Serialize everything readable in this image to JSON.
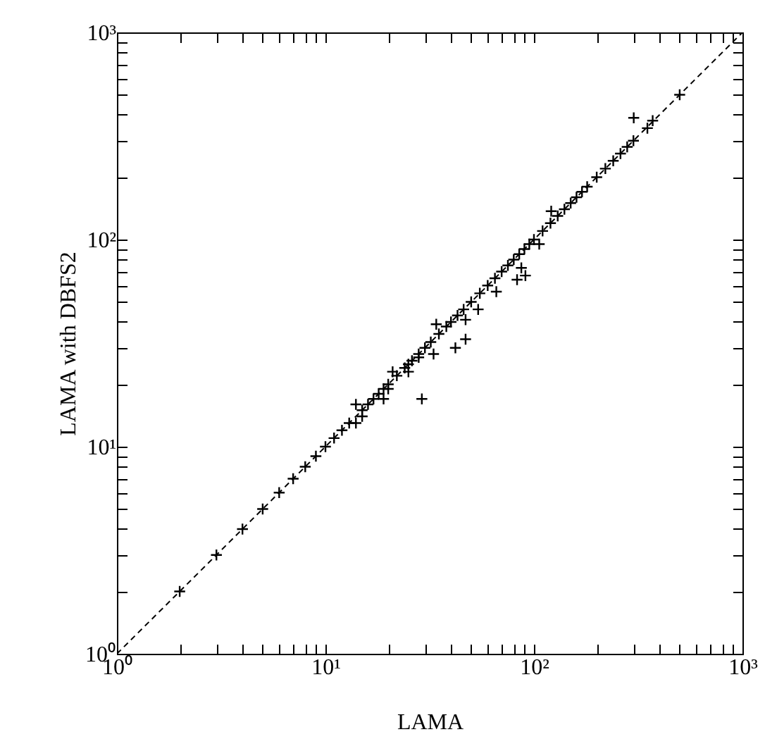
{
  "chart_data": {
    "type": "scatter",
    "xlabel": "LAMA",
    "ylabel": "LAMA with DBFS2",
    "log": "xy",
    "marker": "cross",
    "grid": false,
    "xlim": [
      1,
      1000
    ],
    "ylim": [
      1,
      1000
    ],
    "xticks": [
      {
        "value": 1,
        "label": "10⁰"
      },
      {
        "value": 2,
        "label": null
      },
      {
        "value": 3,
        "label": null
      },
      {
        "value": 4,
        "label": null
      },
      {
        "value": 5,
        "label": null
      },
      {
        "value": 6,
        "label": null
      },
      {
        "value": 7,
        "label": null
      },
      {
        "value": 8,
        "label": null
      },
      {
        "value": 9,
        "label": null
      },
      {
        "value": 10,
        "label": "10¹"
      },
      {
        "value": 20,
        "label": null
      },
      {
        "value": 30,
        "label": null
      },
      {
        "value": 40,
        "label": null
      },
      {
        "value": 50,
        "label": null
      },
      {
        "value": 60,
        "label": null
      },
      {
        "value": 70,
        "label": null
      },
      {
        "value": 80,
        "label": null
      },
      {
        "value": 90,
        "label": null
      },
      {
        "value": 100,
        "label": "10²"
      },
      {
        "value": 200,
        "label": null
      },
      {
        "value": 300,
        "label": null
      },
      {
        "value": 400,
        "label": null
      },
      {
        "value": 500,
        "label": null
      },
      {
        "value": 600,
        "label": null
      },
      {
        "value": 700,
        "label": null
      },
      {
        "value": 800,
        "label": null
      },
      {
        "value": 900,
        "label": null
      },
      {
        "value": 1000,
        "label": "10³"
      }
    ],
    "yticks": [
      {
        "value": 1,
        "label": "10⁰"
      },
      {
        "value": 2,
        "label": null
      },
      {
        "value": 3,
        "label": null
      },
      {
        "value": 4,
        "label": null
      },
      {
        "value": 5,
        "label": null
      },
      {
        "value": 6,
        "label": null
      },
      {
        "value": 7,
        "label": null
      },
      {
        "value": 8,
        "label": null
      },
      {
        "value": 9,
        "label": null
      },
      {
        "value": 10,
        "label": "10¹"
      },
      {
        "value": 20,
        "label": null
      },
      {
        "value": 30,
        "label": null
      },
      {
        "value": 40,
        "label": null
      },
      {
        "value": 50,
        "label": null
      },
      {
        "value": 60,
        "label": null
      },
      {
        "value": 70,
        "label": null
      },
      {
        "value": 80,
        "label": null
      },
      {
        "value": 90,
        "label": null
      },
      {
        "value": 100,
        "label": "10²"
      },
      {
        "value": 200,
        "label": null
      },
      {
        "value": 300,
        "label": null
      },
      {
        "value": 400,
        "label": null
      },
      {
        "value": 500,
        "label": null
      },
      {
        "value": 600,
        "label": null
      },
      {
        "value": 700,
        "label": null
      },
      {
        "value": 800,
        "label": null
      },
      {
        "value": 900,
        "label": null
      },
      {
        "value": 1000,
        "label": "10³"
      }
    ],
    "series": [
      {
        "type": "line",
        "color": "#000000",
        "line_style": "dashed",
        "marker": "none",
        "x": [
          1,
          1000
        ],
        "values": [
          1,
          1000
        ]
      },
      {
        "type": "scatter",
        "color": "#000000",
        "x": [
          2,
          3,
          4,
          5,
          6,
          7,
          8,
          9,
          10,
          11,
          12,
          13,
          14,
          14,
          15,
          15,
          16,
          17,
          18,
          19,
          19,
          20,
          20,
          21,
          22,
          24,
          25,
          25,
          26,
          28,
          28,
          29,
          30,
          32,
          33,
          34,
          35,
          38,
          40,
          42,
          43,
          46,
          47,
          47,
          50,
          54,
          55,
          60,
          65,
          66,
          70,
          75,
          80,
          83,
          85,
          87,
          90,
          91,
          95,
          100,
          106,
          110,
          120,
          121,
          130,
          140,
          150,
          160,
          170,
          180,
          200,
          220,
          240,
          260,
          280,
          300,
          301,
          350,
          371,
          500
        ],
        "values": [
          2,
          3,
          4,
          5,
          6,
          7,
          8,
          9,
          10,
          11,
          12,
          13,
          13,
          16,
          14,
          15,
          16,
          17,
          18,
          17,
          19,
          19,
          20,
          23,
          22,
          24,
          23,
          25,
          26,
          27,
          28,
          17,
          30,
          32,
          28,
          39,
          35,
          38,
          40,
          30,
          43,
          46,
          33,
          41,
          50,
          46,
          55,
          60,
          65,
          56,
          70,
          75,
          80,
          64,
          85,
          73,
          90,
          67,
          95,
          100,
          95,
          110,
          120,
          137,
          130,
          140,
          150,
          160,
          170,
          180,
          200,
          220,
          240,
          260,
          280,
          300,
          387,
          345,
          375,
          500
        ]
      }
    ]
  }
}
